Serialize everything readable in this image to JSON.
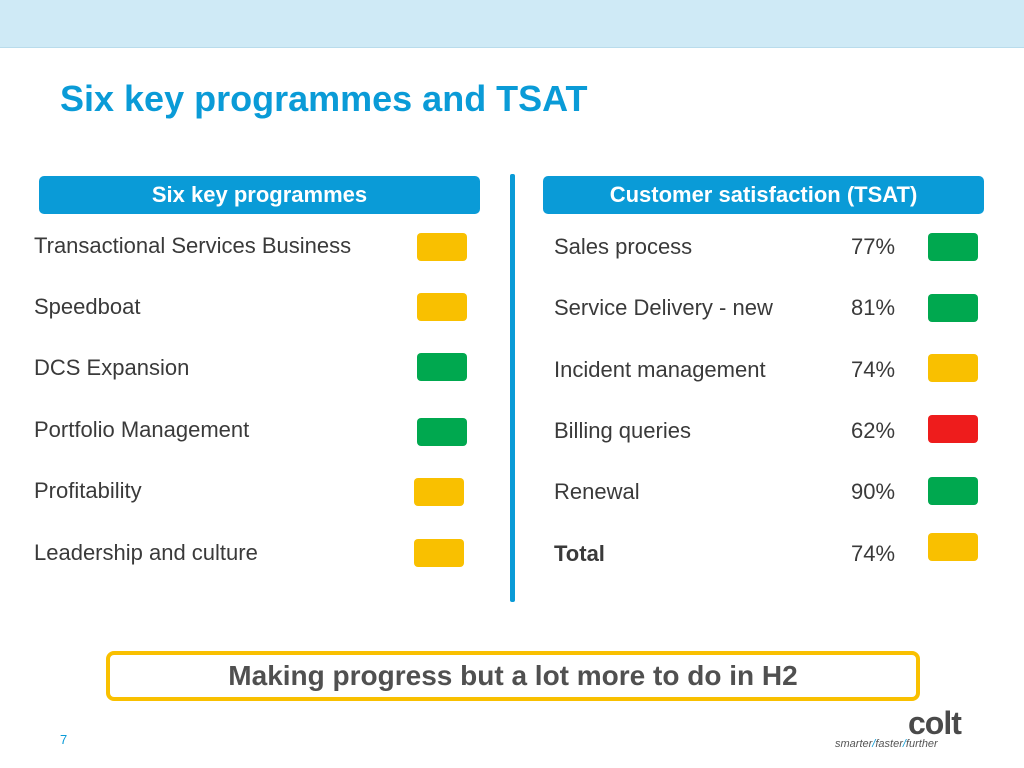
{
  "slide": {
    "title": "Six key programmes and TSAT",
    "page_number": "7"
  },
  "programmes": {
    "header": "Six key programmes",
    "items": [
      {
        "label": "Transactional Services Business",
        "status_color": "#f9c000"
      },
      {
        "label": "Speedboat",
        "status_color": "#f9c000"
      },
      {
        "label": "DCS Expansion",
        "status_color": "#00a84f"
      },
      {
        "label": "Portfolio Management",
        "status_color": "#00a84f"
      },
      {
        "label": "Profitability",
        "status_color": "#f9c000"
      },
      {
        "label": "Leadership and culture",
        "status_color": "#f9c000"
      }
    ]
  },
  "tsat": {
    "header": "Customer satisfaction (TSAT)",
    "items": [
      {
        "label": "Sales process",
        "value": "77%",
        "status_color": "#00a84f"
      },
      {
        "label": "Service Delivery - new",
        "value": "81%",
        "status_color": "#00a84f"
      },
      {
        "label": "Incident management",
        "value": "74%",
        "status_color": "#f9c000"
      },
      {
        "label": "Billing queries",
        "value": "62%",
        "status_color": "#ee1c1c"
      },
      {
        "label": "Renewal",
        "value": "90%",
        "status_color": "#00a84f"
      },
      {
        "label": "Total",
        "value": "74%",
        "status_color": "#f9c000"
      }
    ]
  },
  "banner": {
    "text": "Making progress but a lot more to do in H2"
  },
  "logo": {
    "word": "colt",
    "tagline": [
      "smarter",
      "faster",
      "further"
    ],
    "separator": "/"
  },
  "colors": {
    "accent_blue": "#0a9bd7",
    "amber": "#f9c000",
    "green": "#00a84f",
    "red": "#ee1c1c"
  }
}
